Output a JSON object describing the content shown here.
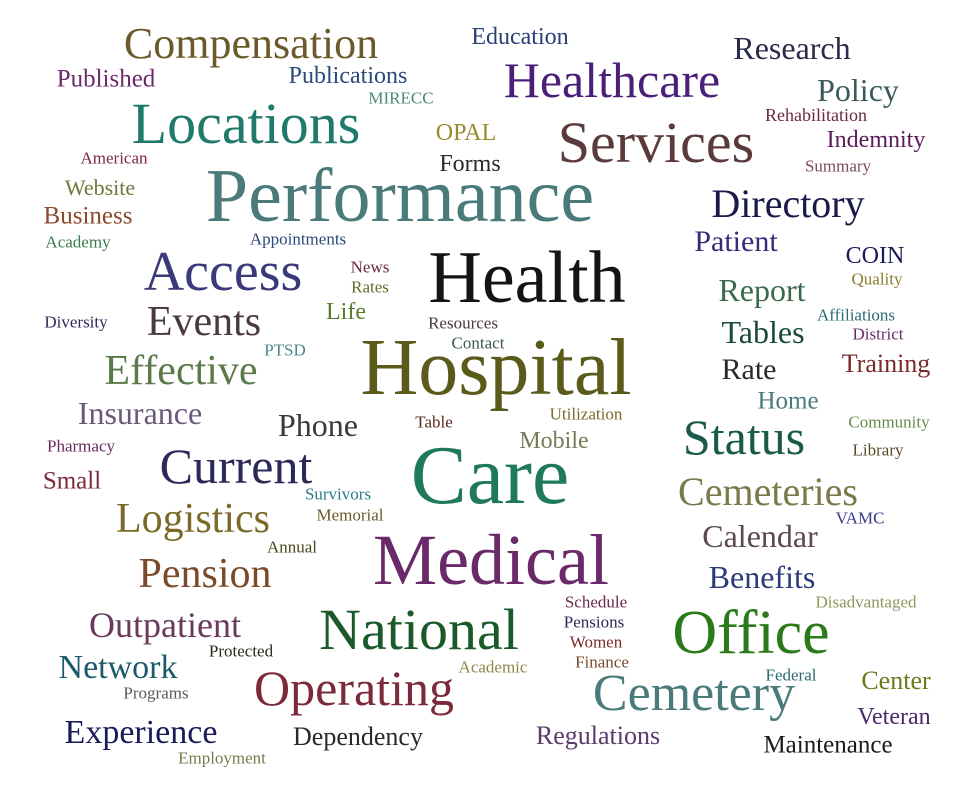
{
  "words": [
    {
      "text": "Compensation",
      "color": "#6b5a2a"
    },
    {
      "text": "Education",
      "color": "#2a3f78"
    },
    {
      "text": "Research",
      "color": "#2a2a4a"
    },
    {
      "text": "Published",
      "color": "#6b2a6b"
    },
    {
      "text": "Publications",
      "color": "#2a4a7a"
    },
    {
      "text": "Healthcare",
      "color": "#4a1f7a"
    },
    {
      "text": "Policy",
      "color": "#3a5a5a"
    },
    {
      "text": "MIRECC",
      "color": "#4a8a7a"
    },
    {
      "text": "Locations",
      "color": "#1f7a6b"
    },
    {
      "text": "OPAL",
      "color": "#9a8a2a"
    },
    {
      "text": "Rehabilitation",
      "color": "#6a2a3a"
    },
    {
      "text": "Services",
      "color": "#5a3a3a"
    },
    {
      "text": "Indemnity",
      "color": "#5a1a5a"
    },
    {
      "text": "American",
      "color": "#7a2a3a"
    },
    {
      "text": "Forms",
      "color": "#2a2a2a"
    },
    {
      "text": "Summary",
      "color": "#7a4a5a"
    },
    {
      "text": "Website",
      "color": "#6a7a3a"
    },
    {
      "text": "Performance",
      "color": "#4a7a7a"
    },
    {
      "text": "Business",
      "color": "#8a4a2a"
    },
    {
      "text": "Directory",
      "color": "#1a1a4a"
    },
    {
      "text": "Academy",
      "color": "#3a7a4a"
    },
    {
      "text": "Appointments",
      "color": "#2a4a7a"
    },
    {
      "text": "Patient",
      "color": "#3a2a7a"
    },
    {
      "text": "COIN",
      "color": "#1a1a5a"
    },
    {
      "text": "Access",
      "color": "#3a3a7a"
    },
    {
      "text": "News",
      "color": "#6a2a3a"
    },
    {
      "text": "Health",
      "color": "#141414"
    },
    {
      "text": "Quality",
      "color": "#8a7a2a"
    },
    {
      "text": "Rates",
      "color": "#6a6a2a"
    },
    {
      "text": "Report",
      "color": "#3a6a4a"
    },
    {
      "text": "Affiliations",
      "color": "#2a6a7a"
    },
    {
      "text": "Life",
      "color": "#5a7a2a"
    },
    {
      "text": "Diversity",
      "color": "#2a2a5a"
    },
    {
      "text": "Events",
      "color": "#4a3a3a"
    },
    {
      "text": "Resources",
      "color": "#4a3a3a"
    },
    {
      "text": "Tables",
      "color": "#1a4a3a"
    },
    {
      "text": "District",
      "color": "#6a2a6a"
    },
    {
      "text": "Contact",
      "color": "#3a5a4a"
    },
    {
      "text": "PTSD",
      "color": "#4a8a8a"
    },
    {
      "text": "Hospital",
      "color": "#5a5a1a"
    },
    {
      "text": "Training",
      "color": "#7a2a2a"
    },
    {
      "text": "Effective",
      "color": "#5a7a4a"
    },
    {
      "text": "Rate",
      "color": "#2a2a2a"
    },
    {
      "text": "Home",
      "color": "#4a7a7a"
    },
    {
      "text": "Insurance",
      "color": "#6a5a7a"
    },
    {
      "text": "Phone",
      "color": "#3a3a3a"
    },
    {
      "text": "Utilization",
      "color": "#7a6a2a"
    },
    {
      "text": "Table",
      "color": "#5a2a1a"
    },
    {
      "text": "Status",
      "color": "#1a5a4a"
    },
    {
      "text": "Community",
      "color": "#6a8a4a"
    },
    {
      "text": "Pharmacy",
      "color": "#6a2a5a"
    },
    {
      "text": "Mobile",
      "color": "#7a7a5a"
    },
    {
      "text": "Library",
      "color": "#5a4a2a"
    },
    {
      "text": "Current",
      "color": "#2a2a5a"
    },
    {
      "text": "Care",
      "color": "#1f7a5a"
    },
    {
      "text": "Small",
      "color": "#7a2a3a"
    },
    {
      "text": "Survivors",
      "color": "#2a7a8a"
    },
    {
      "text": "Cemeteries",
      "color": "#7a7a4a"
    },
    {
      "text": "Memorial",
      "color": "#6a5a2a"
    },
    {
      "text": "Logistics",
      "color": "#7a6a2a"
    },
    {
      "text": "VAMC",
      "color": "#3a3a8a"
    },
    {
      "text": "Calendar",
      "color": "#5a4a4a"
    },
    {
      "text": "Annual",
      "color": "#4a4a1a"
    },
    {
      "text": "Medical",
      "color": "#6a2a6a"
    },
    {
      "text": "Pension",
      "color": "#7a4a2a"
    },
    {
      "text": "Benefits",
      "color": "#2a3a7a"
    },
    {
      "text": "Disadvantaged",
      "color": "#8a9a5a"
    },
    {
      "text": "Schedule",
      "color": "#6a2a4a"
    },
    {
      "text": "Outpatient",
      "color": "#6a3a5a"
    },
    {
      "text": "National",
      "color": "#1a5a2a"
    },
    {
      "text": "Pensions",
      "color": "#2a2a5a"
    },
    {
      "text": "Office",
      "color": "#2a7a1a"
    },
    {
      "text": "Women",
      "color": "#7a2a2a"
    },
    {
      "text": "Protected",
      "color": "#2a2a1a"
    },
    {
      "text": "Network",
      "color": "#1a5a6a"
    },
    {
      "text": "Academic",
      "color": "#8a8a4a"
    },
    {
      "text": "Finance",
      "color": "#7a4a2a"
    },
    {
      "text": "Center",
      "color": "#6a7a1a"
    },
    {
      "text": "Federal",
      "color": "#2a6a7a"
    },
    {
      "text": "Programs",
      "color": "#5a5a5a"
    },
    {
      "text": "Operating",
      "color": "#7a2a3a"
    },
    {
      "text": "Cemetery",
      "color": "#4a7a7a"
    },
    {
      "text": "Veteran",
      "color": "#4a2a6a"
    },
    {
      "text": "Experience",
      "color": "#1a1a5a"
    },
    {
      "text": "Dependency",
      "color": "#2a2a2a"
    },
    {
      "text": "Regulations",
      "color": "#5a3a6a"
    },
    {
      "text": "Maintenance",
      "color": "#1a1a1a"
    },
    {
      "text": "Employment",
      "color": "#7a7a4a"
    }
  ]
}
